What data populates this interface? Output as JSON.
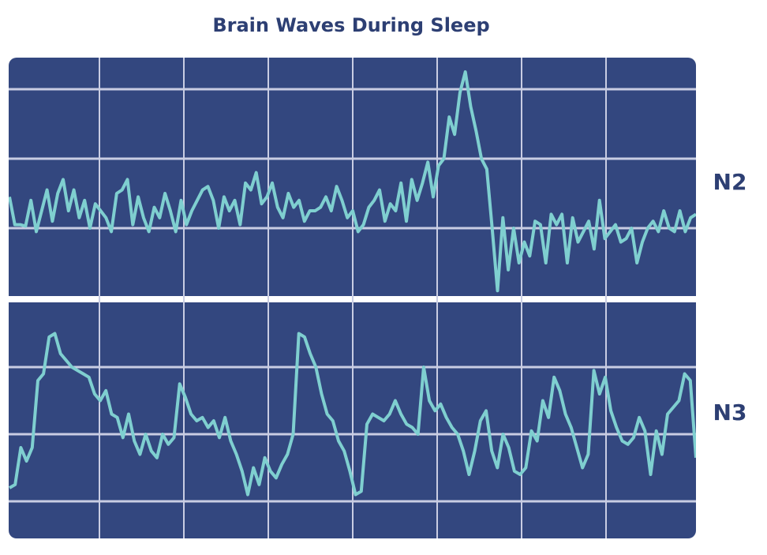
{
  "chart_data": [
    {
      "type": "line",
      "title": "Brain Waves During Sleep",
      "series": [
        {
          "name": "N2",
          "color": "#7fcfd0",
          "values": [
            -0.55,
            -0.95,
            -0.95,
            -0.97,
            -0.6,
            -1.05,
            -0.75,
            -0.45,
            -0.9,
            -0.5,
            -0.3,
            -0.75,
            -0.45,
            -0.85,
            -0.6,
            -1.0,
            -0.65,
            -0.75,
            -0.85,
            -1.05,
            -0.5,
            -0.45,
            -0.3,
            -0.95,
            -0.55,
            -0.85,
            -1.05,
            -0.7,
            -0.85,
            -0.5,
            -0.75,
            -1.05,
            -0.6,
            -0.95,
            -0.75,
            -0.6,
            -0.45,
            -0.4,
            -0.6,
            -1.0,
            -0.55,
            -0.75,
            -0.6,
            -0.95,
            -0.35,
            -0.45,
            -0.2,
            -0.65,
            -0.55,
            -0.35,
            -0.7,
            -0.85,
            -0.5,
            -0.7,
            -0.6,
            -0.9,
            -0.75,
            -0.75,
            -0.7,
            -0.55,
            -0.75,
            -0.4,
            -0.6,
            -0.85,
            -0.75,
            -1.05,
            -0.95,
            -0.7,
            -0.6,
            -0.45,
            -0.9,
            -0.65,
            -0.75,
            -0.35,
            -0.9,
            -0.3,
            -0.6,
            -0.35,
            -0.05,
            -0.55,
            -0.1,
            0.0,
            0.6,
            0.35,
            0.95,
            1.25,
            0.75,
            0.4,
            0.0,
            -0.15,
            -1.0,
            -1.9,
            -0.85,
            -1.6,
            -1.0,
            -1.5,
            -1.2,
            -1.4,
            -0.9,
            -0.95,
            -1.5,
            -0.8,
            -0.95,
            -0.8,
            -1.5,
            -0.85,
            -1.2,
            -1.05,
            -0.9,
            -1.3,
            -0.6,
            -1.15,
            -1.05,
            -0.95,
            -1.2,
            -1.15,
            -1.0,
            -1.5,
            -1.2,
            -1.0,
            -0.9,
            -1.05,
            -0.75,
            -1.0,
            -1.05,
            -0.75,
            -1.05,
            -0.85,
            -0.8
          ]
        }
      ],
      "ylim": [
        -2,
        1.5
      ],
      "yticks": [
        -1,
        0,
        1
      ],
      "grid": true
    },
    {
      "type": "line",
      "series": [
        {
          "name": "N3",
          "color": "#7fcfd0",
          "values": [
            -0.8,
            -0.75,
            -0.2,
            -0.4,
            -0.2,
            0.8,
            0.9,
            1.45,
            1.5,
            1.2,
            1.1,
            1.0,
            0.95,
            0.9,
            0.85,
            0.6,
            0.5,
            0.65,
            0.3,
            0.25,
            -0.05,
            0.3,
            -0.1,
            -0.3,
            0.0,
            -0.25,
            -0.35,
            0.0,
            -0.15,
            -0.05,
            0.75,
            0.55,
            0.3,
            0.2,
            0.25,
            0.1,
            0.2,
            -0.05,
            0.25,
            -0.1,
            -0.3,
            -0.55,
            -0.9,
            -0.5,
            -0.75,
            -0.35,
            -0.55,
            -0.65,
            -0.45,
            -0.3,
            0.0,
            1.5,
            1.45,
            1.2,
            1.0,
            0.6,
            0.3,
            0.2,
            -0.1,
            -0.25,
            -0.55,
            -0.9,
            -0.85,
            0.15,
            0.3,
            0.25,
            0.2,
            0.3,
            0.5,
            0.3,
            0.15,
            0.1,
            0.0,
            1.0,
            0.5,
            0.35,
            0.45,
            0.25,
            0.1,
            0.0,
            -0.25,
            -0.6,
            -0.25,
            0.2,
            0.35,
            -0.25,
            -0.5,
            0.0,
            -0.2,
            -0.55,
            -0.6,
            -0.5,
            0.05,
            -0.1,
            0.5,
            0.25,
            0.85,
            0.65,
            0.3,
            0.1,
            -0.2,
            -0.5,
            -0.3,
            0.95,
            0.6,
            0.85,
            0.35,
            0.1,
            -0.1,
            -0.15,
            -0.05,
            0.25,
            0.05,
            -0.6,
            0.05,
            -0.3,
            0.3,
            0.4,
            0.5,
            0.9,
            0.8,
            -0.35
          ]
        }
      ],
      "ylim": [
        -1.5,
        2
      ],
      "yticks": [
        -1,
        0,
        1
      ],
      "grid": true
    }
  ]
}
